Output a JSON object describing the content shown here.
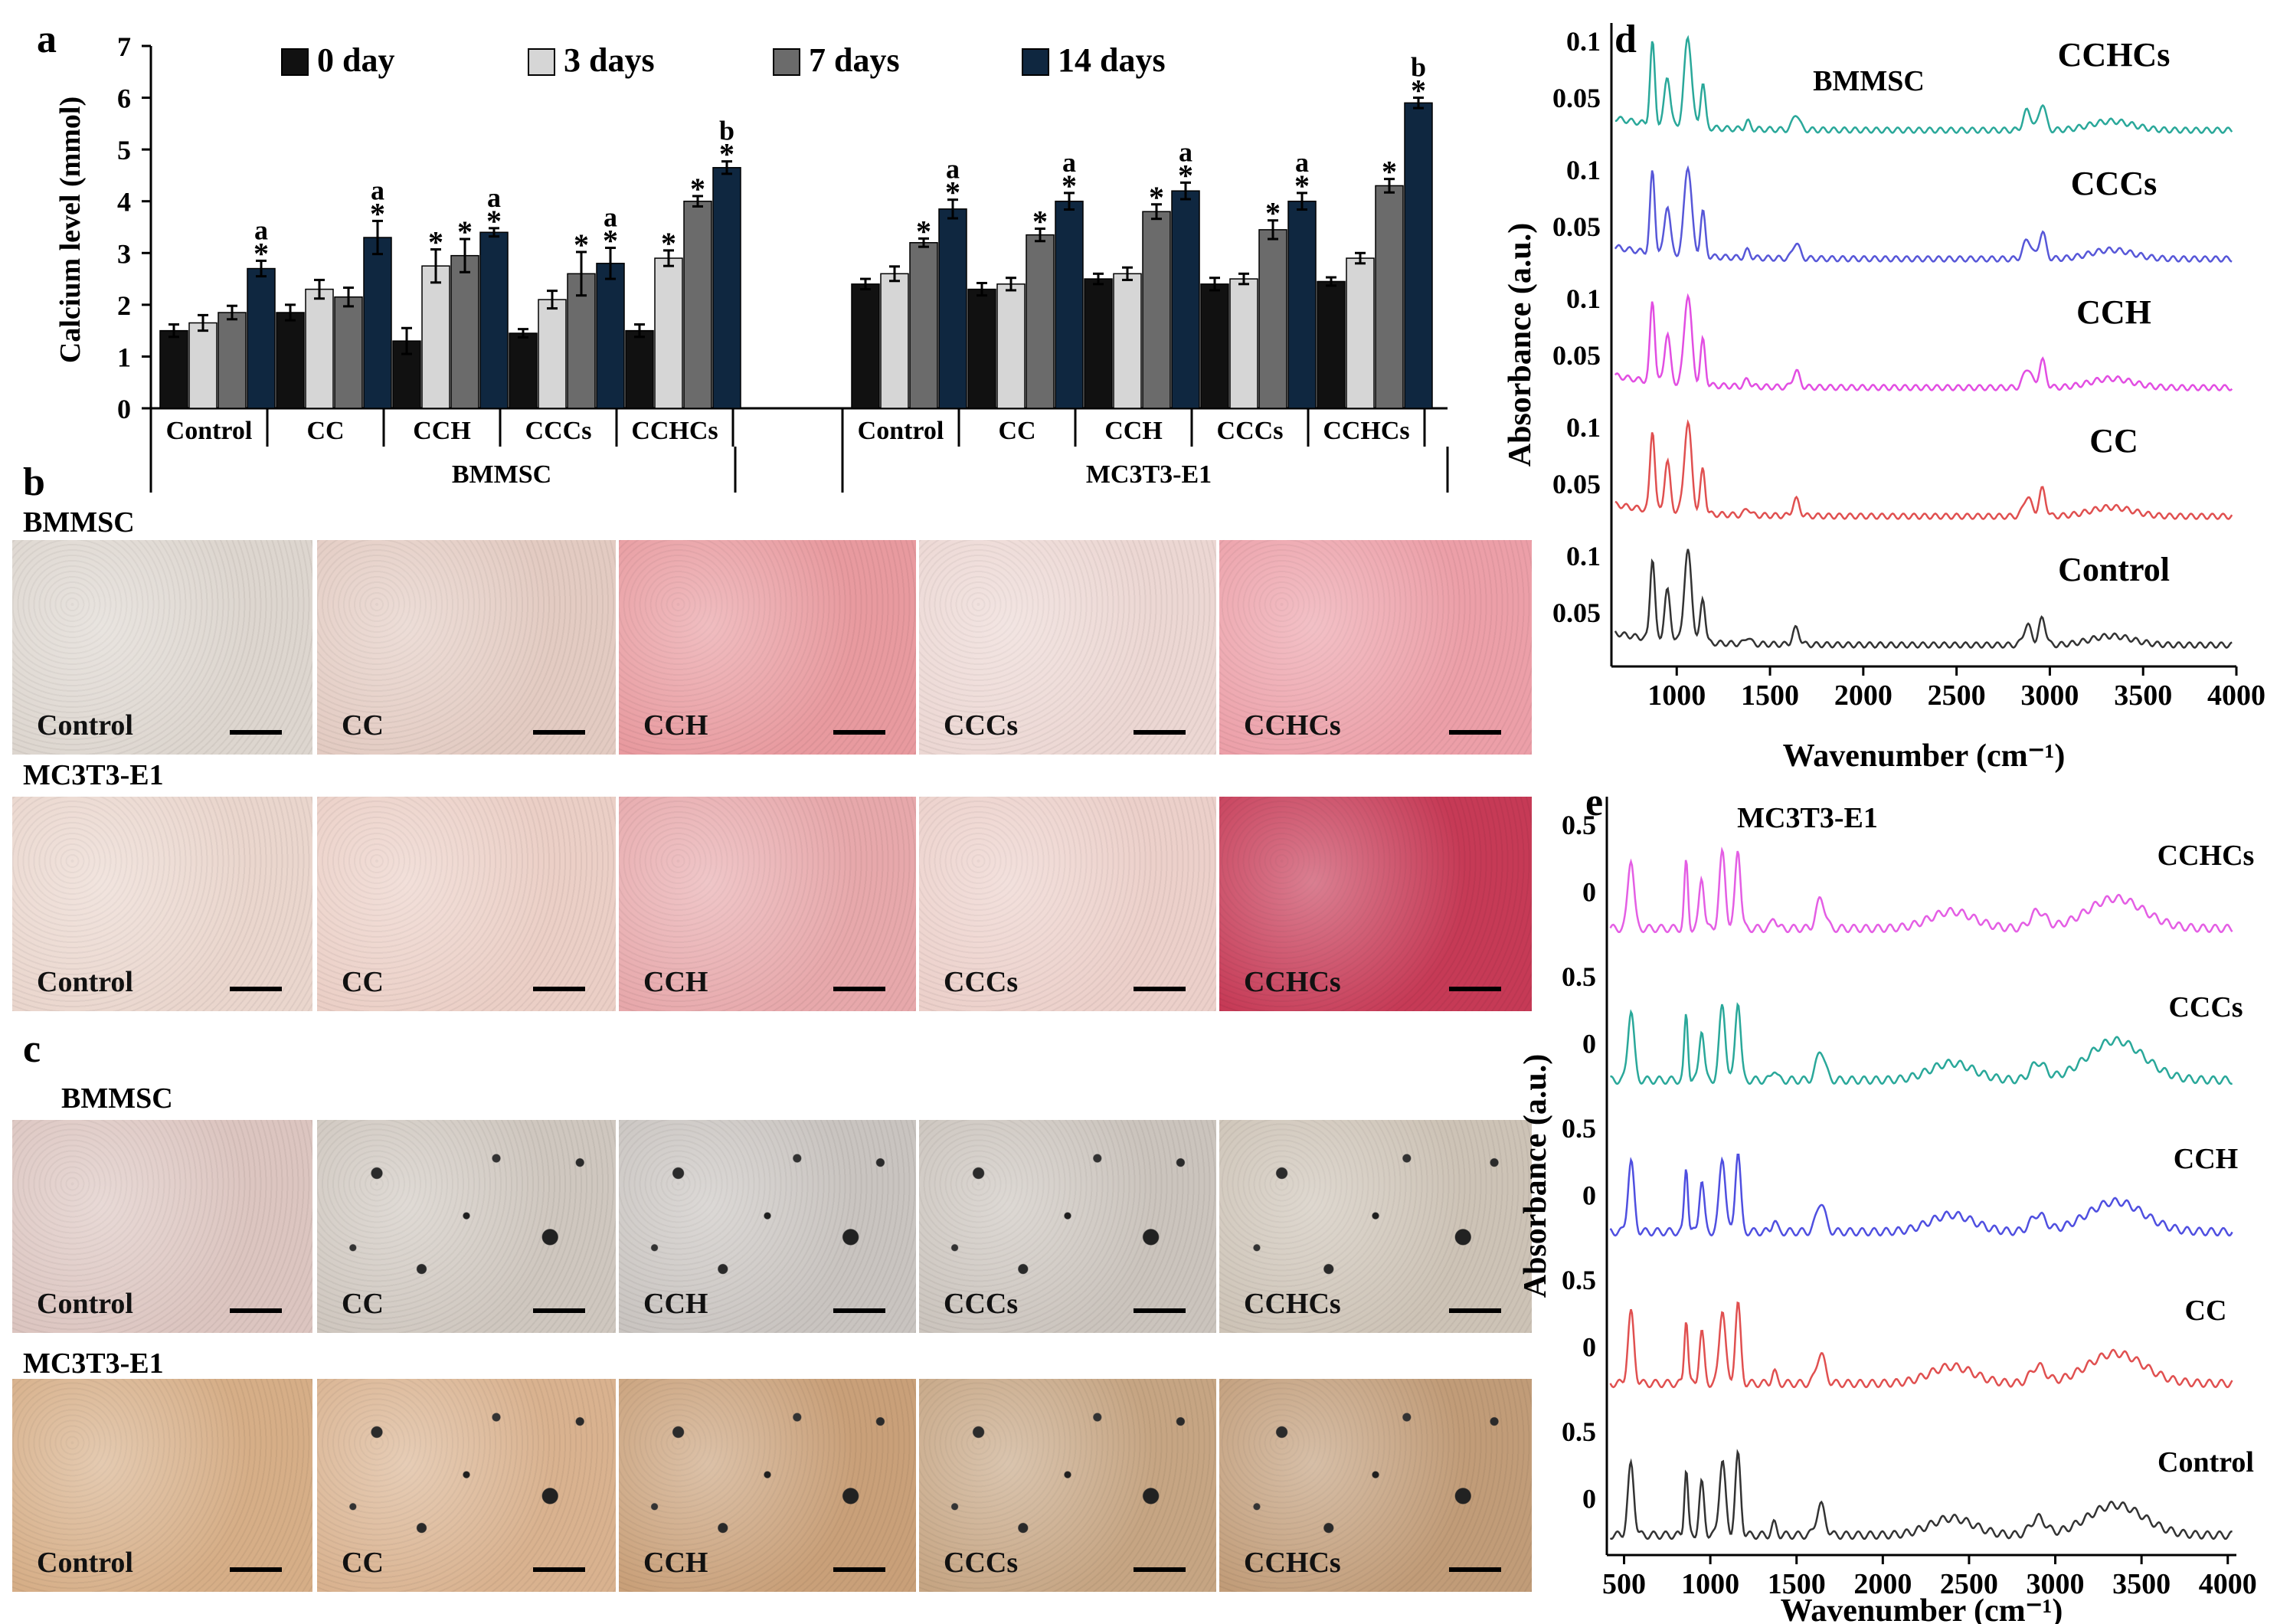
{
  "panels": {
    "a": "a",
    "b": "b",
    "c": "c",
    "d": "d",
    "e": "e"
  },
  "chart_data": [
    {
      "type": "bar",
      "panel": "a",
      "ylabel": "Calcium level (mmol)",
      "ylim": [
        0,
        7
      ],
      "yticks": [
        "0",
        "1",
        "2",
        "3",
        "4",
        "5",
        "6",
        "7"
      ],
      "legend": [
        "0 day",
        "3 days",
        "7 days",
        "14 days"
      ],
      "legend_colors": [
        "#111111",
        "#d6d6d6",
        "#6b6b6b",
        "#0f2740"
      ],
      "group_labels": [
        "BMMSC",
        "MC3T3-E1"
      ],
      "categories": [
        "Control",
        "CC",
        "CCH",
        "CCCs",
        "CCHCs"
      ],
      "groups": [
        {
          "name": "BMMSC",
          "series": [
            {
              "name": "0 day",
              "values": [
                1.5,
                1.85,
                1.3,
                1.45,
                1.5
              ],
              "errors": [
                0.12,
                0.15,
                0.25,
                0.08,
                0.12
              ]
            },
            {
              "name": "3 days",
              "values": [
                1.65,
                2.3,
                2.75,
                2.1,
                2.9
              ],
              "errors": [
                0.15,
                0.18,
                0.32,
                0.17,
                0.15
              ]
            },
            {
              "name": "7 days",
              "values": [
                1.85,
                2.15,
                2.95,
                2.6,
                4.0
              ],
              "errors": [
                0.13,
                0.18,
                0.32,
                0.42,
                0.1
              ]
            },
            {
              "name": "14 days",
              "values": [
                2.7,
                3.3,
                3.4,
                2.8,
                4.65
              ],
              "errors": [
                0.15,
                0.32,
                0.08,
                0.3,
                0.12
              ]
            }
          ],
          "annotations": [
            {
              "category": "Control",
              "series": "14 days",
              "text": "a",
              "star": "*"
            },
            {
              "category": "CC",
              "series": "14 days",
              "text": "a",
              "star": "*"
            },
            {
              "category": "CCH",
              "series": "3 days",
              "text": "",
              "star": "*"
            },
            {
              "category": "CCH",
              "series": "7 days",
              "text": "",
              "star": "*"
            },
            {
              "category": "CCH",
              "series": "14 days",
              "text": "a",
              "star": "*"
            },
            {
              "category": "CCCs",
              "series": "7 days",
              "text": "",
              "star": "*"
            },
            {
              "category": "CCCs",
              "series": "14 days",
              "text": "a",
              "star": "*"
            },
            {
              "category": "CCHCs",
              "series": "3 days",
              "text": "",
              "star": "*"
            },
            {
              "category": "CCHCs",
              "series": "7 days",
              "text": "",
              "star": "*"
            },
            {
              "category": "CCHCs",
              "series": "14 days",
              "text": "b",
              "star": "*"
            }
          ]
        },
        {
          "name": "MC3T3-E1",
          "series": [
            {
              "name": "0 day",
              "values": [
                2.4,
                2.3,
                2.5,
                2.4,
                2.45
              ],
              "errors": [
                0.1,
                0.12,
                0.1,
                0.12,
                0.08
              ]
            },
            {
              "name": "3 days",
              "values": [
                2.6,
                2.4,
                2.6,
                2.5,
                2.9
              ],
              "errors": [
                0.14,
                0.12,
                0.12,
                0.1,
                0.1
              ]
            },
            {
              "name": "7 days",
              "values": [
                3.2,
                3.35,
                3.8,
                3.45,
                4.3
              ],
              "errors": [
                0.08,
                0.12,
                0.14,
                0.18,
                0.13
              ]
            },
            {
              "name": "14 days",
              "values": [
                3.85,
                4.0,
                4.2,
                4.0,
                5.9
              ],
              "errors": [
                0.18,
                0.16,
                0.16,
                0.16,
                0.1
              ]
            }
          ],
          "annotations": [
            {
              "category": "Control",
              "series": "7 days",
              "text": "",
              "star": "*"
            },
            {
              "category": "Control",
              "series": "14 days",
              "text": "a",
              "star": "*"
            },
            {
              "category": "CC",
              "series": "7 days",
              "text": "",
              "star": "*"
            },
            {
              "category": "CC",
              "series": "14 days",
              "text": "a",
              "star": "*"
            },
            {
              "category": "CCH",
              "series": "7 days",
              "text": "",
              "star": "*"
            },
            {
              "category": "CCH",
              "series": "14 days",
              "text": "a",
              "star": "*"
            },
            {
              "category": "CCCs",
              "series": "7 days",
              "text": "",
              "star": "*"
            },
            {
              "category": "CCCs",
              "series": "14 days",
              "text": "a",
              "star": "*"
            },
            {
              "category": "CCHCs",
              "series": "7 days",
              "text": "",
              "star": "*"
            },
            {
              "category": "CCHCs",
              "series": "14 days",
              "text": "b",
              "star": "*"
            }
          ]
        }
      ]
    },
    {
      "type": "line",
      "panel": "d",
      "title": "BMMSC",
      "xlabel": "Wavenumber (cm⁻¹)",
      "ylabel": "Absorbance (a.u.)",
      "xlim": [
        650,
        4000
      ],
      "xticks": [
        "1000",
        "1500",
        "2000",
        "2500",
        "3000",
        "3500",
        "4000"
      ],
      "stack_ticks": [
        "0.1",
        "0.05"
      ],
      "series": [
        {
          "name": "CCHCs",
          "color": "#2aa89a"
        },
        {
          "name": "CCCs",
          "color": "#5757d8"
        },
        {
          "name": "CCH",
          "color": "#e24ee2"
        },
        {
          "name": "CC",
          "color": "#e05050"
        },
        {
          "name": "Control",
          "color": "#333333"
        }
      ]
    },
    {
      "type": "line",
      "panel": "e",
      "title": "MC3T3-E1",
      "xlabel": "Wavenumber (cm⁻¹)",
      "ylabel": "Absorbance (a.u.)",
      "xlim": [
        400,
        4050
      ],
      "xticks": [
        "500",
        "1000",
        "1500",
        "2000",
        "2500",
        "3000",
        "3500",
        "4000"
      ],
      "stack_ticks": [
        "0.5",
        "0"
      ],
      "series": [
        {
          "name": "CCHCs",
          "color": "#e45ee4"
        },
        {
          "name": "CCCs",
          "color": "#2aa89a"
        },
        {
          "name": "CCH",
          "color": "#4f4fe0"
        },
        {
          "name": "CC",
          "color": "#e05050"
        },
        {
          "name": "Control",
          "color": "#333333"
        }
      ]
    }
  ],
  "micrographs": {
    "b": {
      "rows": [
        {
          "label": "BMMSC",
          "tiles": [
            "Control",
            "CC",
            "CCH",
            "CCCs",
            "CCHCs"
          ]
        },
        {
          "label": "MC3T3-E1",
          "tiles": [
            "Control",
            "CC",
            "CCH",
            "CCCs",
            "CCHCs"
          ]
        }
      ]
    },
    "c": {
      "rows": [
        {
          "label": "BMMSC",
          "tiles": [
            "Control",
            "CC",
            "CCH",
            "CCCs",
            "CCHCs"
          ]
        },
        {
          "label": "MC3T3-E1",
          "tiles": [
            "Control",
            "CC",
            "CCH",
            "CCCs",
            "CCHCs"
          ]
        }
      ]
    }
  },
  "colors": {
    "b_bmmsc": [
      "#ddd6cf",
      "#e3cbc2",
      "#e89a9f",
      "#ecd7d3",
      "#ec9fa8"
    ],
    "b_mc3t3": [
      "#ead6cd",
      "#ebcfc6",
      "#e7a8ab",
      "#ecd0ca",
      "#c63a56"
    ],
    "c_bmmsc": [
      "#dcc5c0",
      "#cfc7bf",
      "#c9c4c0",
      "#cbc4bd",
      "#cdc3b6"
    ],
    "c_mc3t3": [
      "#d6ae87",
      "#d9b28f",
      "#c9a079",
      "#c6a583",
      "#c19c78"
    ]
  }
}
